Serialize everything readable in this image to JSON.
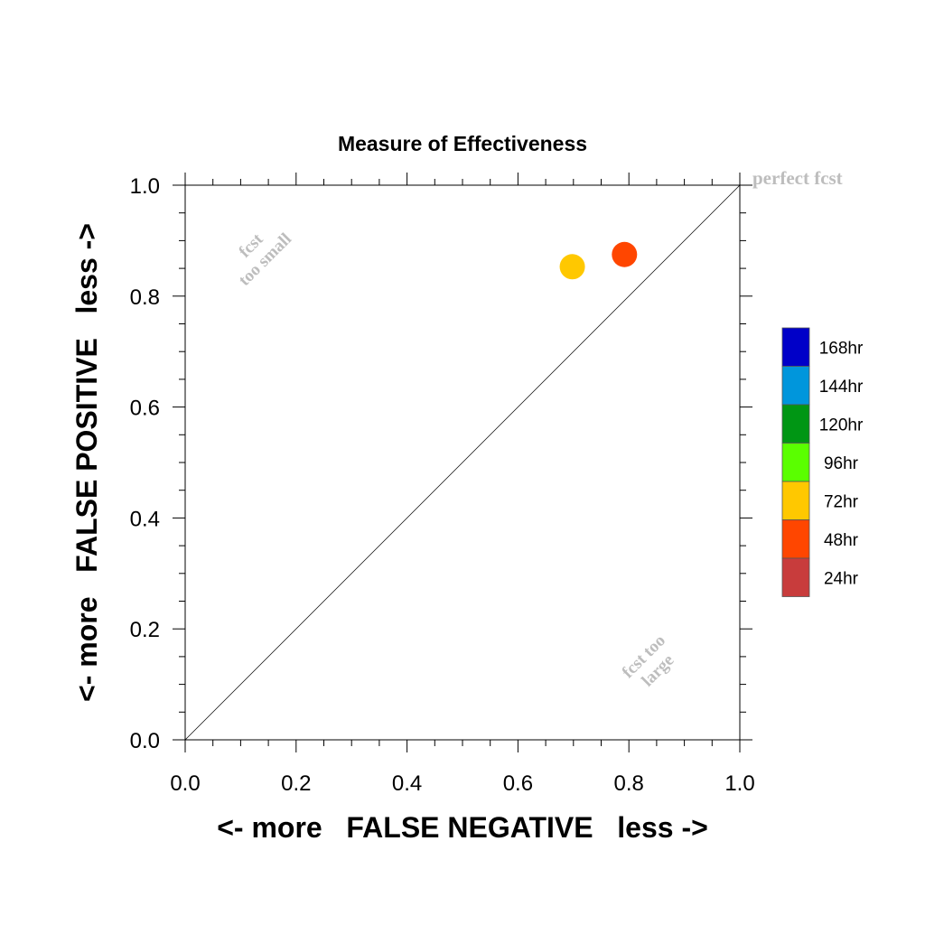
{
  "chart_data": {
    "type": "scatter",
    "title": "Measure of Effectiveness",
    "xlabel": "<- more   FALSE NEGATIVE   less ->",
    "ylabel": "<- more   FALSE POSITIVE   less ->",
    "xlim": [
      0.0,
      1.0
    ],
    "ylim": [
      0.0,
      1.0
    ],
    "xticks": [
      "0.0",
      "0.2",
      "0.4",
      "0.6",
      "0.8",
      "1.0"
    ],
    "yticks": [
      "0.0",
      "0.2",
      "0.4",
      "0.6",
      "0.8",
      "1.0"
    ],
    "diagonal_line": true,
    "grid": false,
    "legend_position": "right",
    "annotations": {
      "perfect": "perfect fcst",
      "too_small_line1": "fcst",
      "too_small_line2": "too small",
      "too_large_line1": "fcst too",
      "too_large_line2": "large"
    },
    "legend": [
      {
        "label": "168hr",
        "color": "#0000c8"
      },
      {
        "label": "144hr",
        "color": "#0096dc"
      },
      {
        "label": "120hr",
        "color": "#009614"
      },
      {
        "label": "96hr",
        "color": "#5aff00"
      },
      {
        "label": "72hr",
        "color": "#ffc800"
      },
      {
        "label": "48hr",
        "color": "#ff4600"
      },
      {
        "label": "24hr",
        "color": "#c83c3c"
      }
    ],
    "points": [
      {
        "series": "72hr",
        "x": 0.698,
        "y": 0.853,
        "color": "#ffc800"
      },
      {
        "series": "48hr",
        "x": 0.792,
        "y": 0.875,
        "color": "#ff4600"
      }
    ]
  }
}
